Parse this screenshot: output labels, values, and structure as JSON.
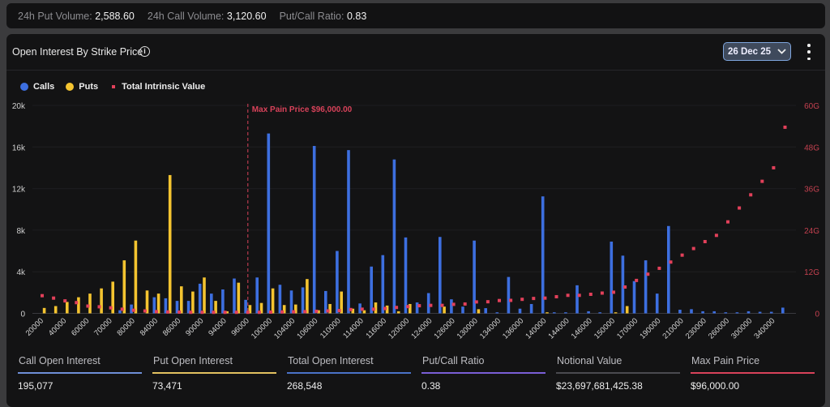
{
  "topbar": {
    "put_volume_label": "24h Put Volume:",
    "put_volume": "2,588.60",
    "call_volume_label": "24h Call Volume:",
    "call_volume": "3,120.60",
    "ratio_label": "Put/Call Ratio:",
    "ratio": "0.83"
  },
  "panel": {
    "title": "Open Interest By Strike Price",
    "info_icon": "info-icon",
    "expiry": "26 Dec 25",
    "menu_icon": "more-vertical-icon"
  },
  "colors": {
    "calls": "#3d6fe0",
    "puts": "#f4c430",
    "intrinsic": "#e2405a",
    "max_pain": "#d8425a"
  },
  "stats": [
    {
      "label": "Call Open Interest",
      "value": "195,077",
      "color": "#6f8fd8"
    },
    {
      "label": "Put Open Interest",
      "value": "73,471",
      "color": "#e2c060"
    },
    {
      "label": "Total Open Interest",
      "value": "268,548",
      "color": "#4a72c8"
    },
    {
      "label": "Put/Call Ratio",
      "value": "0.38",
      "color": "#7a5ed6"
    },
    {
      "label": "Notional Value",
      "value": "$23,697,681,425.38",
      "color": "#4a4a50"
    },
    {
      "label": "Max Pain Price",
      "value": "$96,000.00",
      "color": "#d8425a"
    }
  ],
  "chart_data": {
    "type": "bar",
    "legend": [
      "Calls",
      "Puts",
      "Total Intrinsic Value"
    ],
    "legend_position": "top-left",
    "annotation": "Max Pain Price $96,000.00",
    "annotation_x": "96000",
    "y_left": {
      "ticks": [
        "0",
        "4k",
        "8k",
        "12k",
        "16k",
        "20k"
      ],
      "range": [
        0,
        20000
      ]
    },
    "y_right": {
      "ticks": [
        "0",
        "12G",
        "24G",
        "36G",
        "48G",
        "60G"
      ],
      "range": [
        0,
        60
      ]
    },
    "grid": true,
    "categories": [
      "20000",
      "30000",
      "40000",
      "50000",
      "60000",
      "65000",
      "70000",
      "75000",
      "80000",
      "82000",
      "84000",
      "85000",
      "86000",
      "88000",
      "90000",
      "92000",
      "94000",
      "95000",
      "96000",
      "98000",
      "100000",
      "102000",
      "104000",
      "105000",
      "106000",
      "108000",
      "110000",
      "112000",
      "114000",
      "115000",
      "116000",
      "118000",
      "120000",
      "122000",
      "124000",
      "125000",
      "126000",
      "128000",
      "130000",
      "132000",
      "134000",
      "135000",
      "136000",
      "138000",
      "140000",
      "142000",
      "144000",
      "145000",
      "146000",
      "148000",
      "150000",
      "160000",
      "170000",
      "180000",
      "190000",
      "200000",
      "210000",
      "220000",
      "230000",
      "250000",
      "260000",
      "280000",
      "300000",
      "320000",
      "340000",
      "360000"
    ],
    "series": [
      {
        "name": "Calls",
        "axis": "left",
        "values": [
          0,
          0,
          0,
          0,
          0,
          0,
          0,
          300,
          850,
          0,
          1550,
          1450,
          1200,
          1200,
          2850,
          1900,
          2300,
          3350,
          1300,
          3450,
          17300,
          2750,
          2200,
          2500,
          16100,
          2150,
          6000,
          15700,
          950,
          4500,
          5600,
          14800,
          7300,
          1050,
          1950,
          7350,
          1350,
          650,
          7000,
          500,
          100,
          3500,
          450,
          900,
          11250,
          100,
          100,
          2700,
          200,
          100,
          6900,
          5550,
          3100,
          5100,
          1900,
          8400,
          350,
          400,
          200,
          200,
          100,
          100,
          200,
          150,
          150,
          550
        ]
      },
      {
        "name": "Puts",
        "axis": "left",
        "values": [
          520,
          700,
          1100,
          1550,
          1900,
          2400,
          3050,
          5100,
          7000,
          2200,
          1900,
          13300,
          2600,
          2100,
          3450,
          1200,
          200,
          2950,
          800,
          1000,
          2400,
          800,
          850,
          3300,
          300,
          900,
          2100,
          450,
          300,
          1050,
          750,
          200,
          900,
          0,
          0,
          650,
          0,
          0,
          400,
          0,
          0,
          0,
          0,
          0,
          100,
          0,
          0,
          0,
          0,
          0,
          100,
          700,
          0,
          0,
          0,
          0,
          0,
          0,
          0,
          0,
          0,
          0,
          0,
          0,
          0,
          0
        ]
      },
      {
        "name": "Total Intrinsic Value",
        "axis": "right",
        "unit": "G",
        "values": [
          5.1,
          4.4,
          3.6,
          3.1,
          2.1,
          1.9,
          1.6,
          1.2,
          0.9,
          0.7,
          0.5,
          0.4,
          0.35,
          0.3,
          0.3,
          0.3,
          0.3,
          0.3,
          0.3,
          0.3,
          0.35,
          0.4,
          0.45,
          0.5,
          0.6,
          0.7,
          0.8,
          1.1,
          1.2,
          1.2,
          1.4,
          1.7,
          1.95,
          2.2,
          2.3,
          2.3,
          2.6,
          2.7,
          3.3,
          3.35,
          3.7,
          3.75,
          4.05,
          4.3,
          4.4,
          4.8,
          5.2,
          5.2,
          5.5,
          5.85,
          6.1,
          7.6,
          9.5,
          11.3,
          13.0,
          14.8,
          16.8,
          18.7,
          20.7,
          22.5,
          26.4,
          30.4,
          34.2,
          38.1,
          42.0,
          53.7
        ]
      }
    ]
  }
}
